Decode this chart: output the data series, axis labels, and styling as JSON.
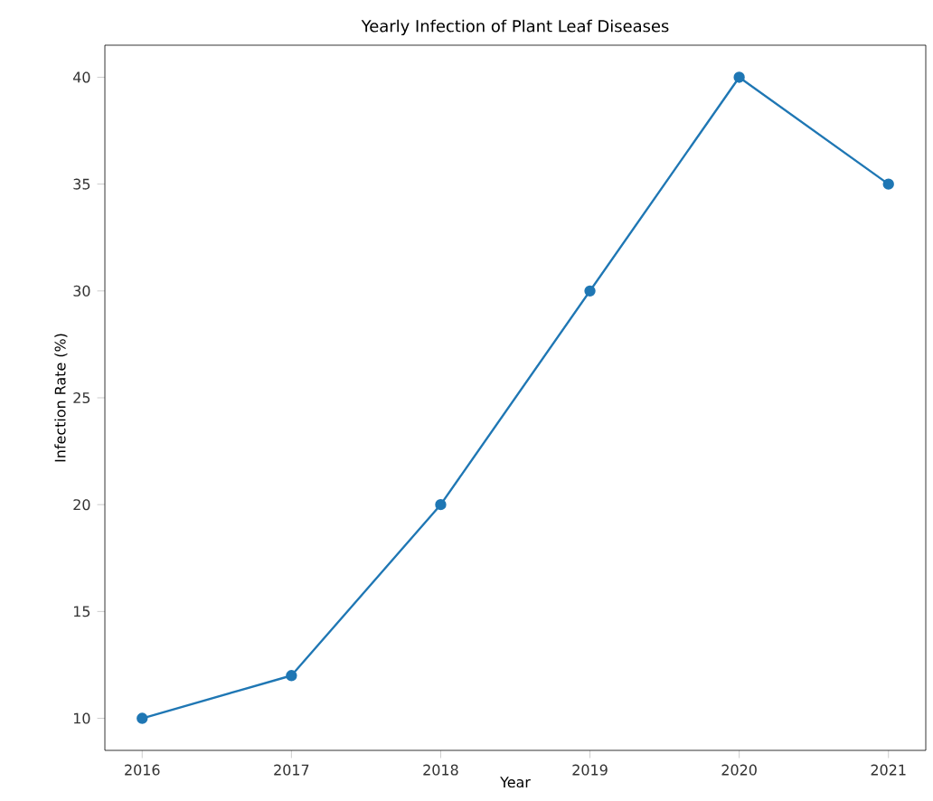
{
  "chart_data": {
    "type": "line",
    "title": "Yearly Infection of Plant Leaf Diseases",
    "xlabel": "Year",
    "ylabel": "Infection Rate (%)",
    "x": [
      2016,
      2017,
      2018,
      2019,
      2020,
      2021
    ],
    "values": [
      10,
      12,
      20,
      30,
      40,
      35
    ],
    "color": "#1f77b4",
    "marker": "circle",
    "xlim": [
      2015.75,
      2021.25
    ],
    "ylim": [
      8.5,
      41.5
    ],
    "xticks": [
      2016,
      2017,
      2018,
      2019,
      2020,
      2021
    ],
    "yticks": [
      10,
      15,
      20,
      25,
      30,
      35,
      40
    ]
  }
}
